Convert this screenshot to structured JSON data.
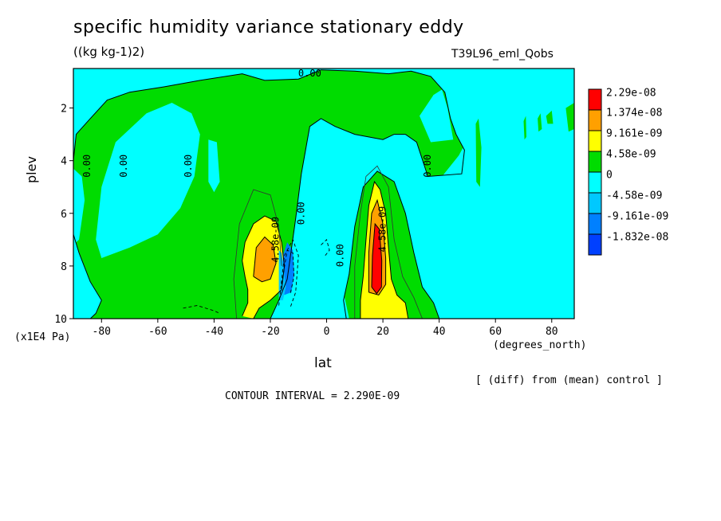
{
  "header": {
    "title": "specific humidity variance stationary eddy",
    "units": "((kg kg-1)2)",
    "run_id": "T39L96_eml_Qobs"
  },
  "axes": {
    "ylabel": "plev",
    "yunit": "(x1E4 Pa)",
    "xlabel": "lat",
    "xunit": "(degrees_north)"
  },
  "footer": {
    "diff_note": "[ (diff) from (mean) control ]",
    "contour_interval": "CONTOUR INTERVAL = 2.290E-09"
  },
  "colors": {
    "cyan": "#00ffff",
    "green": "#00dc00",
    "yellow": "#ffff00",
    "orange": "#ffa000",
    "red": "#ff0000",
    "lightblue": "#00c8ff",
    "blue": "#0080ff",
    "darkblue": "#0040ff"
  },
  "chart_data": {
    "type": "heatmap",
    "title": "specific humidity variance stationary eddy",
    "xlabel": "lat",
    "ylabel": "plev",
    "xlim": [
      -90,
      88
    ],
    "ylim": [
      10,
      0.5
    ],
    "x_ticks": [
      -80,
      -60,
      -40,
      -20,
      0,
      20,
      40,
      60,
      80
    ],
    "y_ticks": [
      2,
      4,
      6,
      8,
      10
    ],
    "legend": {
      "placement": "right",
      "entries": [
        {
          "label": "2.29e-08",
          "color": "#ff0000"
        },
        {
          "label": "1.374e-08",
          "color": "#ffa000"
        },
        {
          "label": "9.161e-09",
          "color": "#ffff00"
        },
        {
          "label": "4.58e-09",
          "color": "#00dc00"
        },
        {
          "label": "0",
          "color": "#00ffff"
        },
        {
          "label": "-4.58e-09",
          "color": "#00c8ff"
        },
        {
          "label": "-9.161e-09",
          "color": "#0080ff"
        },
        {
          "label": "-1.832e-08",
          "color": "#0040ff"
        }
      ]
    },
    "contour_labels": [
      {
        "text": "0.00",
        "lat": -85,
        "plev": 4.2
      },
      {
        "text": "0.00",
        "lat": -72,
        "plev": 4.2
      },
      {
        "text": "0.00",
        "lat": -49,
        "plev": 4.2
      },
      {
        "text": "0.00",
        "lat": -9,
        "plev": 6.0
      },
      {
        "text": "4.58e-09",
        "lat": -18,
        "plev": 7.0
      },
      {
        "text": "0.00",
        "lat": 5,
        "plev": 7.6
      },
      {
        "text": "4.58e-09",
        "lat": 20,
        "plev": 6.6
      },
      {
        "text": "0.00",
        "lat": 36,
        "plev": 4.2
      },
      {
        "text": "0.00",
        "lat": -6,
        "plev": 0.7
      }
    ],
    "features": [
      {
        "name": "southern maximum",
        "lat": -21,
        "plev": 7.8,
        "peak_level": "1.374e-08"
      },
      {
        "name": "northern maximum",
        "lat": 19,
        "plev": 8.0,
        "peak_level": "2.29e-08"
      },
      {
        "name": "minimum",
        "lat": -12,
        "plev": 8.0,
        "peak_level": "-9.161e-09"
      }
    ]
  }
}
